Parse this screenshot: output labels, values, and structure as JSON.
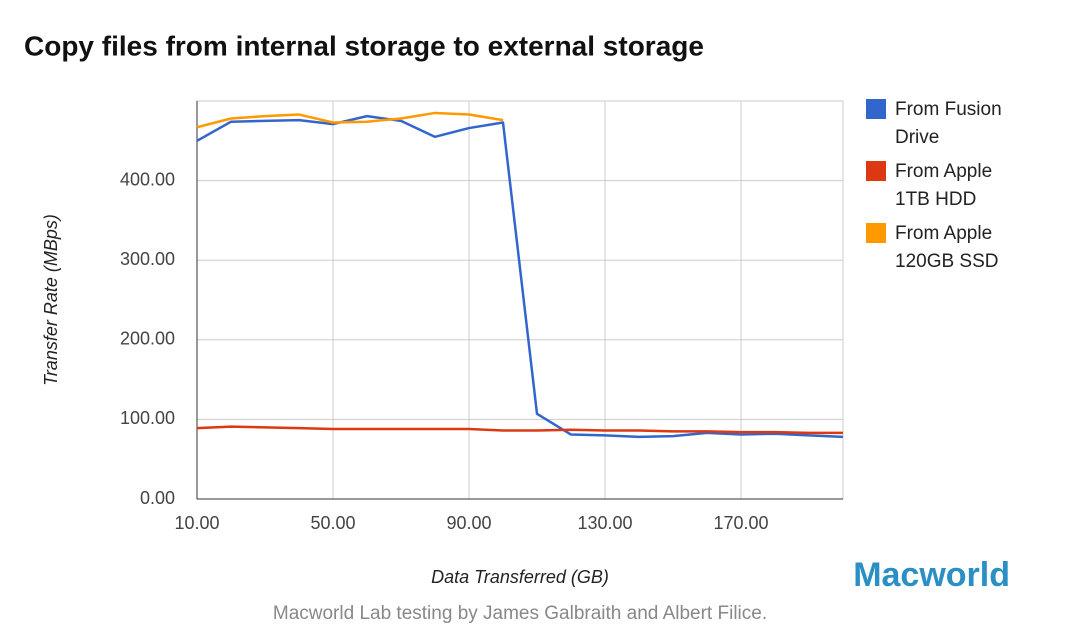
{
  "chart_data": {
    "type": "line",
    "title": "Copy files from internal storage to external storage",
    "x_label": "Data Transferred (GB)",
    "y_label": "Transfer Rate (MBps)",
    "source": "Macworld Lab testing by James Galbraith and Albert Filice.",
    "logo": "Macworld",
    "x": [
      10,
      20,
      30,
      40,
      50,
      60,
      70,
      80,
      90,
      100,
      110,
      120,
      130,
      140,
      150,
      160,
      170,
      180,
      190,
      200
    ],
    "series": [
      {
        "name": "From Fusion Drive",
        "color": "#3366cc",
        "values": [
          450,
          474,
          475,
          476,
          471,
          481,
          475,
          455,
          466,
          473,
          107,
          81,
          80,
          78,
          79,
          83,
          81,
          82,
          80,
          78
        ]
      },
      {
        "name": "From Apple 1TB HDD",
        "color": "#dc3912",
        "values": [
          89,
          91,
          90,
          89,
          88,
          88,
          88,
          88,
          88,
          86,
          86,
          87,
          86,
          86,
          85,
          85,
          84,
          84,
          83,
          83
        ]
      },
      {
        "name": "From Apple 120GB SSD",
        "color": "#ff9900",
        "values": [
          467,
          478,
          481,
          483,
          473,
          474,
          478,
          485,
          483,
          476,
          null,
          null,
          null,
          null,
          null,
          null,
          null,
          null,
          null,
          null
        ]
      }
    ],
    "xlim": [
      10,
      200
    ],
    "ylim": [
      0,
      500
    ],
    "xticks": [
      {
        "value": 10,
        "label": "10.00"
      },
      {
        "value": 50,
        "label": "50.00"
      },
      {
        "value": 90,
        "label": "90.00"
      },
      {
        "value": 130,
        "label": "130.00"
      },
      {
        "value": 170,
        "label": "170.00"
      }
    ],
    "yticks": [
      {
        "value": 0,
        "label": "0.00"
      },
      {
        "value": 100,
        "label": "100.00"
      },
      {
        "value": 200,
        "label": "200.00"
      },
      {
        "value": 300,
        "label": "300.00"
      },
      {
        "value": 400,
        "label": "400.00"
      }
    ],
    "grid": true,
    "legend": "right"
  }
}
